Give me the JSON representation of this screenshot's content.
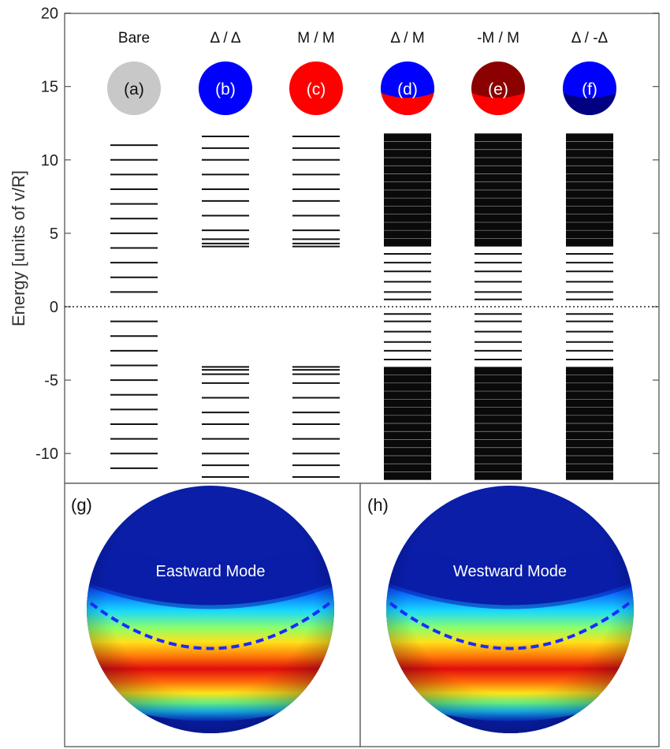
{
  "chart_data": {
    "type": "energy-level diagram",
    "ylabel": "Energy [units of v/R]",
    "ylim": [
      -12,
      20
    ],
    "yticks": [
      -10,
      -5,
      0,
      5,
      10,
      15,
      20
    ],
    "ytick_labels": [
      "-10",
      "-5",
      "0",
      "5",
      "10",
      "15",
      "20"
    ],
    "zero_line": "dotted",
    "columns": [
      {
        "header": "Bare",
        "label": "(a)",
        "sphere": {
          "top": "#c8c8c8",
          "bottom": "#c8c8c8",
          "boundary": null
        },
        "levels": [
          -11,
          -10,
          -9,
          -8,
          -7,
          -6,
          -5,
          -4,
          -3,
          -2,
          -1,
          1,
          2,
          3,
          4,
          5,
          6,
          7,
          8,
          9,
          10,
          11
        ]
      },
      {
        "header": "Δ / Δ",
        "label": "(b)",
        "sphere": {
          "top": "#0000ff",
          "bottom": "#0000ff",
          "boundary": null
        },
        "levels": [
          -11.6,
          -10.8,
          -10.0,
          -9.0,
          -8.0,
          -7.2,
          -6.2,
          -5.2,
          -4.6,
          -4.3,
          -4.1,
          4.1,
          4.3,
          4.6,
          5.2,
          6.2,
          7.2,
          8.0,
          9.0,
          10.0,
          10.8,
          11.6
        ]
      },
      {
        "header": "M / M",
        "label": "(c)",
        "sphere": {
          "top": "#ff0000",
          "bottom": "#ff0000",
          "boundary": null
        },
        "levels": [
          -11.6,
          -10.8,
          -10.0,
          -9.0,
          -8.0,
          -7.2,
          -6.2,
          -5.2,
          -4.6,
          -4.3,
          -4.1,
          4.1,
          4.3,
          4.6,
          5.2,
          6.2,
          7.2,
          8.0,
          9.0,
          10.0,
          10.8,
          11.6
        ]
      },
      {
        "header": "Δ / M",
        "label": "(d)",
        "sphere": {
          "top": "#0000ff",
          "bottom": "#ff0000",
          "boundary": "equator"
        },
        "levels": [
          -3.6,
          -3.0,
          -2.4,
          -1.7,
          -1.0,
          -0.5,
          0.5,
          1.0,
          1.7,
          2.4,
          3.0,
          3.6
        ],
        "bands": [
          [
            -11.8,
            -4.1
          ],
          [
            4.1,
            11.8
          ]
        ]
      },
      {
        "header": "-M / M",
        "label": "(e)",
        "sphere": {
          "top": "#8b0000",
          "bottom": "#ff0000",
          "boundary": "equator"
        },
        "levels": [
          -3.6,
          -3.0,
          -2.4,
          -1.7,
          -1.0,
          -0.5,
          0.5,
          1.0,
          1.7,
          2.4,
          3.0,
          3.6
        ],
        "bands": [
          [
            -11.8,
            -4.1
          ],
          [
            4.1,
            11.8
          ]
        ]
      },
      {
        "header": "Δ / -Δ",
        "label": "(f)",
        "sphere": {
          "top": "#0000ff",
          "bottom": "#000080",
          "boundary": "equator"
        },
        "levels": [
          -3.6,
          -3.0,
          -2.4,
          -1.7,
          -1.0,
          -0.5,
          0.5,
          1.0,
          1.7,
          2.4,
          3.0,
          3.6
        ],
        "bands": [
          [
            -11.8,
            -4.1
          ],
          [
            4.1,
            11.8
          ]
        ]
      }
    ],
    "mode_panels": [
      {
        "label": "(g)",
        "title": "Eastward Mode"
      },
      {
        "label": "(h)",
        "title": "Westward Mode"
      }
    ]
  }
}
